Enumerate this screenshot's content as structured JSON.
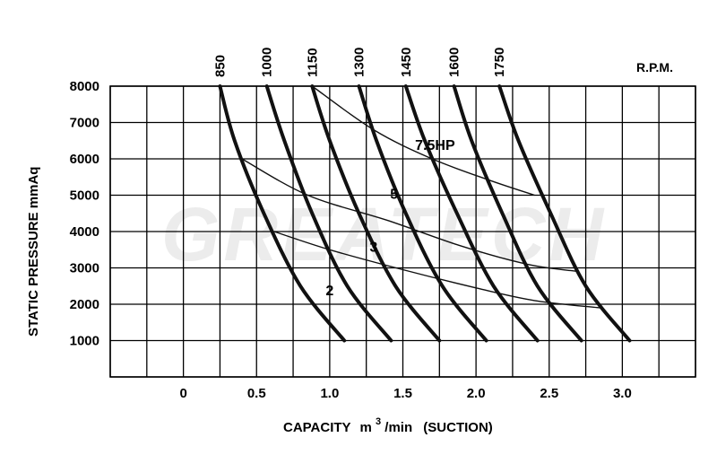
{
  "chart_data": {
    "type": "line",
    "title": "",
    "xlabel": "CAPACITY",
    "xlabel_unit_base": "m",
    "xlabel_unit_sup": "3",
    "xlabel_unit_tail": "/min",
    "xlabel_note": "(SUCTION)",
    "ylabel": "STATIC PRESSURE mmAq",
    "rpm_unit_label": "R.P.M.",
    "watermark": "GREATECH",
    "xlim": [
      -0.5,
      3.5
    ],
    "ylim": [
      0,
      8000
    ],
    "grid": true,
    "x_ticks": [
      0,
      0.5,
      1.0,
      1.5,
      2.0,
      2.5,
      3.0
    ],
    "x_tick_labels": [
      "0",
      "0.5",
      "1.0",
      "1.5",
      "2.0",
      "2.5",
      "3.0"
    ],
    "y_ticks": [
      1000,
      2000,
      3000,
      4000,
      5000,
      6000,
      7000,
      8000
    ],
    "y_tick_labels": [
      "1000",
      "2000",
      "3000",
      "4000",
      "5000",
      "6000",
      "7000",
      "8000"
    ],
    "rpm_series": [
      {
        "name": "850",
        "points": [
          [
            0.25,
            8000
          ],
          [
            0.35,
            6500
          ],
          [
            0.55,
            4500
          ],
          [
            0.8,
            2500
          ],
          [
            1.1,
            1000
          ]
        ]
      },
      {
        "name": "1000",
        "points": [
          [
            0.57,
            8000
          ],
          [
            0.69,
            6500
          ],
          [
            0.88,
            4500
          ],
          [
            1.12,
            2500
          ],
          [
            1.42,
            1000
          ]
        ]
      },
      {
        "name": "1150",
        "points": [
          [
            0.88,
            8000
          ],
          [
            1.0,
            6500
          ],
          [
            1.2,
            4500
          ],
          [
            1.45,
            2500
          ],
          [
            1.75,
            1000
          ]
        ]
      },
      {
        "name": "1300",
        "points": [
          [
            1.2,
            8000
          ],
          [
            1.32,
            6500
          ],
          [
            1.52,
            4500
          ],
          [
            1.77,
            2500
          ],
          [
            2.07,
            1000
          ]
        ]
      },
      {
        "name": "1450",
        "points": [
          [
            1.52,
            8000
          ],
          [
            1.65,
            6500
          ],
          [
            1.87,
            4500
          ],
          [
            2.12,
            2500
          ],
          [
            2.42,
            1000
          ]
        ]
      },
      {
        "name": "1600",
        "points": [
          [
            1.85,
            8000
          ],
          [
            1.97,
            6500
          ],
          [
            2.18,
            4500
          ],
          [
            2.42,
            2500
          ],
          [
            2.72,
            1000
          ]
        ]
      },
      {
        "name": "1750",
        "points": [
          [
            2.16,
            8000
          ],
          [
            2.29,
            6500
          ],
          [
            2.51,
            4500
          ],
          [
            2.75,
            2500
          ],
          [
            3.05,
            1000
          ]
        ]
      }
    ],
    "hp_series": [
      {
        "name": "7.5HP",
        "points": [
          [
            0.88,
            8000
          ],
          [
            1.3,
            6800
          ],
          [
            1.7,
            6000
          ],
          [
            2.1,
            5400
          ],
          [
            2.4,
            5000
          ]
        ]
      },
      {
        "name": "5",
        "points": [
          [
            0.4,
            6000
          ],
          [
            0.85,
            5000
          ],
          [
            1.4,
            4300
          ],
          [
            1.9,
            3600
          ],
          [
            2.35,
            3100
          ],
          [
            2.7,
            2900
          ]
        ]
      },
      {
        "name": "3",
        "points": [
          [
            0.62,
            4000
          ],
          [
            1.0,
            3500
          ],
          [
            1.5,
            2950
          ],
          [
            2.0,
            2450
          ],
          [
            2.4,
            2100
          ],
          [
            2.85,
            1900
          ]
        ]
      },
      {
        "name": "2",
        "points": []
      }
    ]
  }
}
